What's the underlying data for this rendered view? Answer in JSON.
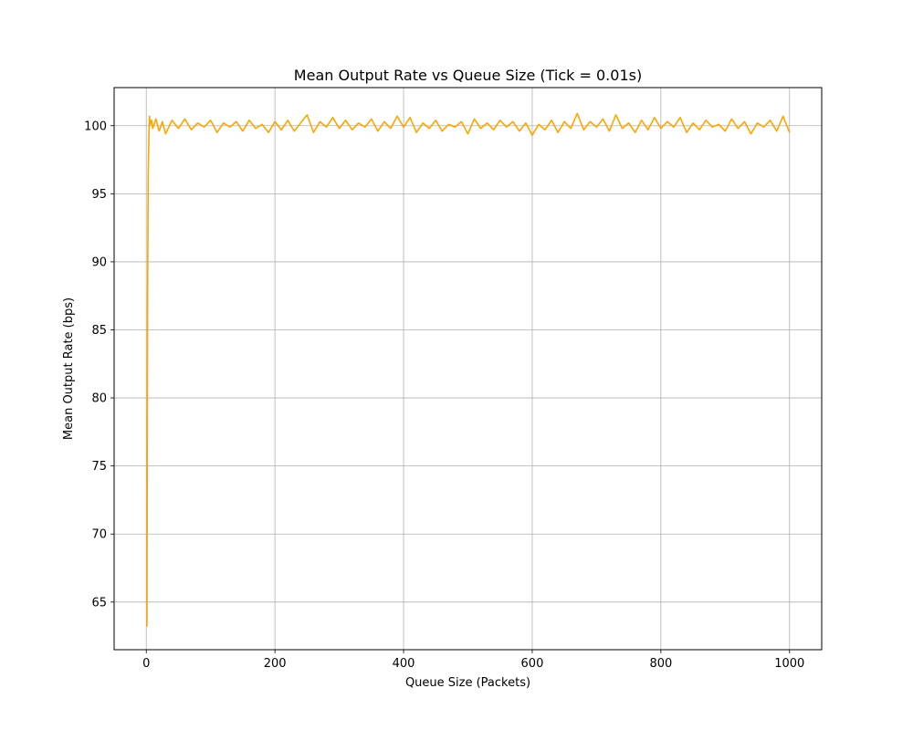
{
  "chart_data": {
    "type": "line",
    "title": "Mean Output Rate vs Queue Size (Tick = 0.01s)",
    "xlabel": "Queue Size (Packets)",
    "ylabel": "Mean Output Rate (bps)",
    "xlim": [
      -50,
      1050
    ],
    "ylim": [
      61.5,
      102.8
    ],
    "xticks": [
      0,
      200,
      400,
      600,
      800,
      1000
    ],
    "yticks": [
      65,
      70,
      75,
      80,
      85,
      90,
      95,
      100
    ],
    "grid": true,
    "legend": "none",
    "series": [
      {
        "color": "#ffa500",
        "x": [
          1,
          2,
          3,
          4,
          5,
          6,
          8,
          10,
          15,
          20,
          25,
          30,
          40,
          50,
          60,
          70,
          80,
          90,
          100,
          110,
          120,
          130,
          140,
          150,
          160,
          170,
          180,
          190,
          200,
          210,
          220,
          230,
          240,
          250,
          260,
          270,
          280,
          290,
          300,
          310,
          320,
          330,
          340,
          350,
          360,
          370,
          380,
          390,
          400,
          410,
          420,
          430,
          440,
          450,
          460,
          470,
          480,
          490,
          500,
          510,
          520,
          530,
          540,
          550,
          560,
          570,
          580,
          590,
          600,
          610,
          620,
          630,
          640,
          650,
          660,
          670,
          680,
          690,
          700,
          710,
          720,
          730,
          740,
          750,
          760,
          770,
          780,
          790,
          800,
          810,
          820,
          830,
          840,
          850,
          860,
          870,
          880,
          890,
          900,
          910,
          920,
          930,
          940,
          950,
          960,
          970,
          980,
          990,
          1000
        ],
        "y": [
          63.2,
          87.0,
          96.5,
          99.2,
          100.7,
          100.1,
          100.4,
          99.8,
          100.5,
          99.6,
          100.3,
          99.4,
          100.4,
          99.8,
          100.5,
          99.7,
          100.2,
          99.9,
          100.4,
          99.5,
          100.2,
          99.9,
          100.3,
          99.6,
          100.4,
          99.8,
          100.1,
          99.5,
          100.3,
          99.7,
          100.4,
          99.6,
          100.2,
          100.8,
          99.5,
          100.3,
          99.9,
          100.6,
          99.8,
          100.4,
          99.7,
          100.2,
          99.9,
          100.5,
          99.6,
          100.3,
          99.8,
          100.7,
          99.9,
          100.6,
          99.5,
          100.2,
          99.8,
          100.4,
          99.6,
          100.1,
          99.9,
          100.3,
          99.4,
          100.5,
          99.8,
          100.2,
          99.7,
          100.4,
          99.9,
          100.3,
          99.6,
          100.2,
          99.3,
          100.1,
          99.7,
          100.4,
          99.5,
          100.3,
          99.8,
          100.9,
          99.7,
          100.3,
          99.9,
          100.5,
          99.6,
          100.8,
          99.8,
          100.2,
          99.5,
          100.4,
          99.7,
          100.6,
          99.8,
          100.3,
          99.9,
          100.6,
          99.5,
          100.2,
          99.7,
          100.4,
          99.9,
          100.1,
          99.6,
          100.5,
          99.8,
          100.3,
          99.4,
          100.2,
          99.9,
          100.4,
          99.6,
          100.7,
          99.5
        ]
      }
    ]
  }
}
